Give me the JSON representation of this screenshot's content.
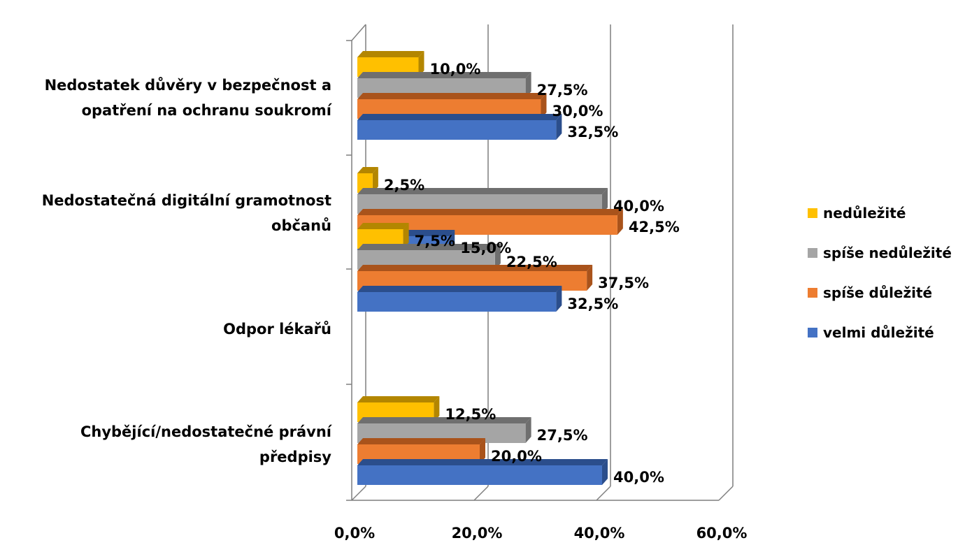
{
  "chart_data": {
    "type": "bar",
    "orientation": "horizontal",
    "style": "3d-clustered",
    "categories": [
      [
        "Nedostatek důvěry v bezpečnost a",
        "opatření na ochranu soukromí"
      ],
      [
        "Nedostatečná digitální gramotnost",
        "občanů"
      ],
      [
        "Odpor lékařů"
      ],
      [
        "Chybějící/nedostatečné právní",
        "předpisy"
      ]
    ],
    "series": [
      {
        "name": "nedůležité",
        "color": "#FFC000",
        "side": "#B38600",
        "values": [
          10.0,
          2.5,
          7.5,
          12.5
        ],
        "labels": [
          "10,0%",
          "2,5%",
          "7,5%",
          "12,5%"
        ]
      },
      {
        "name": "spíše nedůležité",
        "color": "#A5A5A5",
        "side": "#6F6F6F",
        "values": [
          27.5,
          40.0,
          22.5,
          27.5
        ],
        "labels": [
          "27,5%",
          "40,0%",
          "22,5%",
          "27,5%"
        ]
      },
      {
        "name": "spíše důležité",
        "color": "#ED7D31",
        "side": "#A9531B",
        "values": [
          30.0,
          42.5,
          37.5,
          20.0
        ],
        "labels": [
          "30,0%",
          "42,5%",
          "37,5%",
          "20,0%"
        ]
      },
      {
        "name": "velmi důležité",
        "color": "#4472C4",
        "side": "#2B4E8C",
        "values": [
          32.5,
          15.0,
          32.5,
          40.0
        ],
        "labels": [
          "32,5%",
          "15,0%",
          "32,5%",
          "40,0%"
        ]
      }
    ],
    "xlim": [
      0,
      60
    ],
    "xticks": [
      0,
      20,
      40,
      60
    ],
    "xtick_labels": [
      "0,0%",
      "20,0%",
      "40,0%",
      "60,0%"
    ],
    "grid": true,
    "legend_position": "right"
  }
}
